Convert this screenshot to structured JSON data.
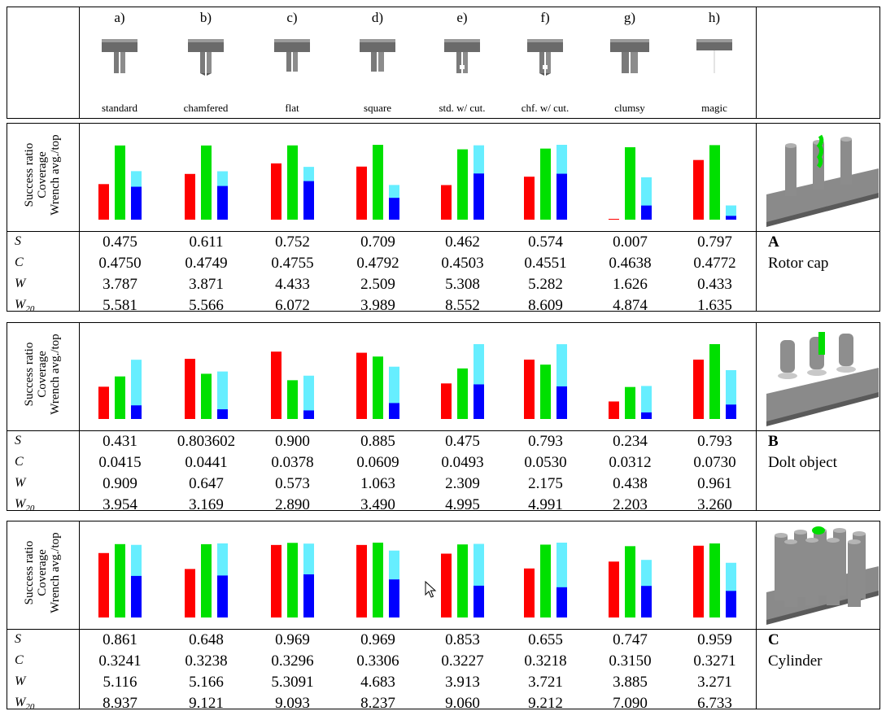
{
  "grippers": [
    {
      "letter": "a)",
      "name": "standard"
    },
    {
      "letter": "b)",
      "name": "chamfered"
    },
    {
      "letter": "c)",
      "name": "flat"
    },
    {
      "letter": "d)",
      "name": "square"
    },
    {
      "letter": "e)",
      "name": "std. w/ cut."
    },
    {
      "letter": "f)",
      "name": "chf. w/ cut."
    },
    {
      "letter": "g)",
      "name": "clumsy"
    },
    {
      "letter": "h)",
      "name": "magic"
    }
  ],
  "axis_label": {
    "line1": "Success ratio",
    "line2": "Coverage",
    "line3": "Wrench avg./top"
  },
  "metric_labels": {
    "s": "S",
    "c": "C",
    "w": "W",
    "w20_main": "W",
    "w20_sub": "20"
  },
  "colors": {
    "success": "#ff0000",
    "coverage": "#00e000",
    "wrench_top": "#66eeff",
    "wrench_avg": "#0000ff"
  },
  "objects": [
    {
      "id": "A",
      "name": "Rotor cap",
      "S": [
        "0.475",
        "0.611",
        "0.752",
        "0.709",
        "0.462",
        "0.574",
        "0.007",
        "0.797"
      ],
      "C": [
        "0.4750",
        "0.4749",
        "0.4755",
        "0.4792",
        "0.4503",
        "0.4551",
        "0.4638",
        "0.4772"
      ],
      "W": [
        "3.787",
        "3.871",
        "4.433",
        "2.509",
        "5.308",
        "5.282",
        "1.626",
        "0.433"
      ],
      "W20": [
        "5.581",
        "5.566",
        "6.072",
        "3.989",
        "8.552",
        "8.609",
        "4.874",
        "1.635"
      ]
    },
    {
      "id": "B",
      "name": "Dolt object",
      "S": [
        "0.431",
        "0.803602",
        "0.900",
        "0.885",
        "0.475",
        "0.793",
        "0.234",
        "0.793"
      ],
      "C": [
        "0.0415",
        "0.0441",
        "0.0378",
        "0.0609",
        "0.0493",
        "0.0530",
        "0.0312",
        "0.0730"
      ],
      "W": [
        "0.909",
        "0.647",
        "0.573",
        "1.063",
        "2.309",
        "2.175",
        "0.438",
        "0.961"
      ],
      "W20": [
        "3.954",
        "3.169",
        "2.890",
        "3.490",
        "4.995",
        "4.991",
        "2.203",
        "3.260"
      ]
    },
    {
      "id": "C",
      "name": "Cylinder",
      "S": [
        "0.861",
        "0.648",
        "0.969",
        "0.969",
        "0.853",
        "0.655",
        "0.747",
        "0.959"
      ],
      "C": [
        "0.3241",
        "0.3238",
        "0.3296",
        "0.3306",
        "0.3227",
        "0.3218",
        "0.3150",
        "0.3271"
      ],
      "W": [
        "5.116",
        "5.166",
        "5.3091",
        "4.683",
        "3.913",
        "3.721",
        "3.885",
        "3.271"
      ],
      "W20": [
        "8.937",
        "9.121",
        "9.093",
        "8.237",
        "9.060",
        "9.212",
        "7.090",
        "6.733"
      ]
    }
  ]
}
